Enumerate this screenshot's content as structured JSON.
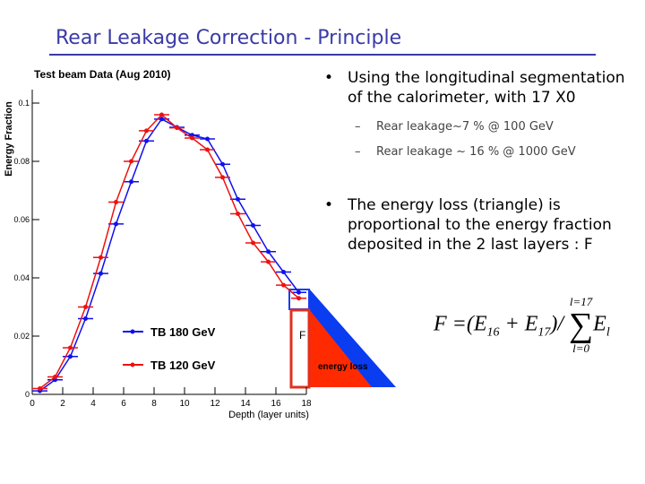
{
  "slide": {
    "title": "Rear Leakage Correction - Principle",
    "bullets": [
      {
        "text": "Using the longitudinal segmentation of the calorimeter, with 17 X0",
        "sub": [
          "Rear leakage~7 % @ 100 GeV",
          "Rear leakage  ~ 16 % @ 1000 GeV"
        ]
      },
      {
        "text": "The energy loss (triangle) is proportional to the energy fraction deposited in the 2 last layers : F",
        "sub": []
      }
    ],
    "formula": {
      "lhs": "F",
      "eq": "=",
      "open": "(E",
      "s1": "16",
      "plus": " + E",
      "s2": "17",
      "close": ")/",
      "sum": "∑",
      "e": "E",
      "el": "l",
      "upper": "l=17",
      "lower": "l=0"
    },
    "diagram": {
      "f_label": "F",
      "loss_label": "energy loss"
    }
  },
  "chart_data": {
    "type": "line",
    "header": "Test beam Data (Aug 2010)",
    "xlabel": "Depth (layer units)",
    "ylabel": "Energy Fraction",
    "x": [
      0.5,
      1.5,
      2.5,
      3.5,
      4.5,
      5.5,
      6.5,
      7.5,
      8.5,
      9.5,
      10.5,
      11.5,
      12.5,
      13.5,
      14.5,
      15.5,
      16.5,
      17.5
    ],
    "series": [
      {
        "name": "TB 180 GeV",
        "color": "#1010ee",
        "values": [
          0.0012,
          0.005,
          0.013,
          0.026,
          0.0415,
          0.0585,
          0.073,
          0.087,
          0.0945,
          0.0917,
          0.089,
          0.0877,
          0.079,
          0.067,
          0.058,
          0.049,
          0.042,
          0.035
        ]
      },
      {
        "name": "TB 120 GeV",
        "color": "#ee1010",
        "values": [
          0.002,
          0.006,
          0.016,
          0.03,
          0.047,
          0.066,
          0.08,
          0.0905,
          0.096,
          0.0915,
          0.088,
          0.084,
          0.0745,
          0.062,
          0.052,
          0.0455,
          0.0375,
          0.033
        ]
      }
    ],
    "xlim": [
      0,
      18
    ],
    "xticks": [
      0,
      2,
      4,
      6,
      8,
      10,
      12,
      14,
      16,
      18
    ],
    "ylim": [
      0,
      0.1
    ],
    "yticks": [
      0,
      0.02,
      0.04,
      0.06,
      0.08,
      0.1
    ]
  }
}
